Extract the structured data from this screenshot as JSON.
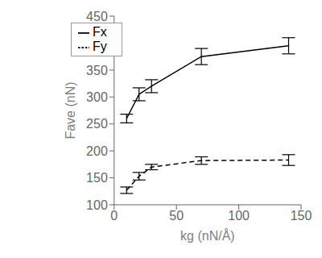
{
  "chart_data": {
    "type": "line",
    "x": [
      10,
      20,
      30,
      70,
      140
    ],
    "series": [
      {
        "name": "Fx",
        "values": [
          260,
          305,
          320,
          375,
          395
        ],
        "yerr": [
          8,
          12,
          12,
          15,
          15
        ],
        "color": "#000000",
        "line_style": "solid"
      },
      {
        "name": "Fy",
        "values": [
          127,
          153,
          170,
          182,
          183
        ],
        "yerr": [
          6,
          7,
          5,
          7,
          10
        ],
        "color": "#000000",
        "line_style": "dashed"
      }
    ],
    "xlabel": "kg (nN/Å)",
    "ylabel": "Fave (nN)",
    "xlim": [
      0,
      150
    ],
    "ylim": [
      100,
      450
    ],
    "xticks": [
      0,
      50,
      100,
      150
    ],
    "yticks": [
      100,
      150,
      200,
      250,
      300,
      350,
      400,
      450
    ],
    "legend": "upper left",
    "grid": false
  }
}
